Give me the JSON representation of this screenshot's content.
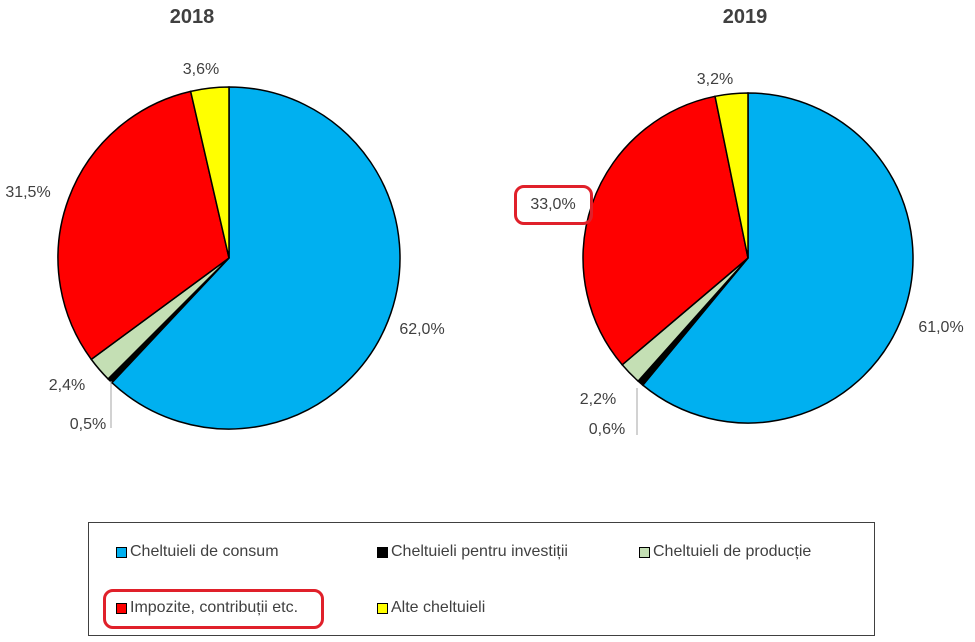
{
  "chart_data": [
    {
      "type": "pie",
      "title": "2018",
      "categories": [
        "Cheltuieli de consum",
        "Cheltuieli pentru investiții",
        "Cheltuieli de producție",
        "Impozite, contribuții etc.",
        "Alte cheltuieli"
      ],
      "values": [
        62.0,
        0.5,
        2.4,
        31.5,
        3.6
      ],
      "labels": [
        "62,0%",
        "0,5%",
        "2,4%",
        "31,5%",
        "3,6%"
      ]
    },
    {
      "type": "pie",
      "title": "2019",
      "categories": [
        "Cheltuieli de consum",
        "Cheltuieli pentru investiții",
        "Cheltuieli de producție",
        "Impozite, contribuții etc.",
        "Alte cheltuieli"
      ],
      "values": [
        61.0,
        0.6,
        2.2,
        33.0,
        3.2
      ],
      "labels": [
        "61,0%",
        "0,6%",
        "2,2%",
        "33,0%",
        "3,2%"
      ]
    }
  ],
  "colors": [
    "#00b0f0",
    "#000000",
    "#c4dfb4",
    "#ff0000",
    "#ffff00"
  ],
  "legend": {
    "placement": "bottom",
    "items": [
      "Cheltuieli de consum",
      "Cheltuieli pentru investiții",
      "Cheltuieli de producție",
      "Impozite, contribuții etc.",
      "Alte cheltuieli"
    ]
  },
  "highlight_color": "#e0202a"
}
